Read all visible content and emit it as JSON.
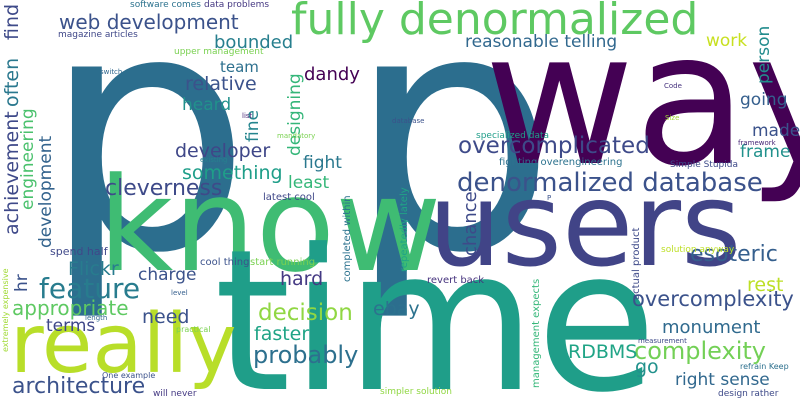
{
  "words": [
    {
      "text": "p",
      "color": "#2c6e8e"
    },
    {
      "text": "p",
      "color": "#2c6e8e"
    },
    {
      "text": "way",
      "color": "#440154"
    },
    {
      "text": "know",
      "color": "#3fbc73"
    },
    {
      "text": "users",
      "color": "#414487"
    },
    {
      "text": "time",
      "color": "#1f9e89"
    },
    {
      "text": "really",
      "color": "#b8de29"
    },
    {
      "text": "fully denormalized",
      "color": "#5ec962"
    },
    {
      "text": "denormalized database",
      "color": "#3b528b"
    },
    {
      "text": "web development",
      "color": "#3b528b"
    },
    {
      "text": "overcomplicated",
      "color": "#3e4a89"
    },
    {
      "text": "overcomplexity",
      "color": "#3b528b"
    },
    {
      "text": "complexity",
      "color": "#73d056"
    },
    {
      "text": "esoteric",
      "color": "#355f8d"
    },
    {
      "text": "cleverness",
      "color": "#3e4a89"
    },
    {
      "text": "feature",
      "color": "#287c8e"
    },
    {
      "text": "decision",
      "color": "#90d743"
    },
    {
      "text": "probably",
      "color": "#2d708e"
    },
    {
      "text": "architecture",
      "color": "#3b528b"
    },
    {
      "text": "appropriate",
      "color": "#5ec962"
    },
    {
      "text": "monument",
      "color": "#306a8e"
    },
    {
      "text": "right sense",
      "color": "#31688e"
    },
    {
      "text": "reasonable telling",
      "color": "#31688e"
    },
    {
      "text": "bounded",
      "color": "#277f8e"
    },
    {
      "text": "relative",
      "color": "#3b528b"
    },
    {
      "text": "developer",
      "color": "#3f4788"
    },
    {
      "text": "something",
      "color": "#1f9e89"
    },
    {
      "text": "dandy",
      "color": "#440154"
    },
    {
      "text": "heard",
      "color": "#21918c"
    },
    {
      "text": "fight",
      "color": "#2a788e"
    },
    {
      "text": "least",
      "color": "#35b779"
    },
    {
      "text": "chance",
      "color": "#3e4a89"
    },
    {
      "text": "Flickr",
      "color": "#287c8e"
    },
    {
      "text": "charge",
      "color": "#3b528b"
    },
    {
      "text": "hard",
      "color": "#443983"
    },
    {
      "text": "faster",
      "color": "#20a486"
    },
    {
      "text": "need",
      "color": "#3b528b"
    },
    {
      "text": "ebay",
      "color": "#2c728e"
    },
    {
      "text": "RDBMS",
      "color": "#20a486"
    },
    {
      "text": "rest",
      "color": "#bddf26"
    },
    {
      "text": "go",
      "color": "#21918c"
    },
    {
      "text": "terms",
      "color": "#3f4788"
    },
    {
      "text": "frame",
      "color": "#21918c"
    },
    {
      "text": "made",
      "color": "#3b528b"
    },
    {
      "text": "going",
      "color": "#355f8d"
    },
    {
      "text": "work",
      "color": "#c8e020"
    },
    {
      "text": "team",
      "color": "#2d708e"
    },
    {
      "text": "person",
      "color": "#228c8d"
    },
    {
      "text": "find",
      "color": "#3e4a89"
    },
    {
      "text": "often",
      "color": "#2a788e"
    },
    {
      "text": "achievement",
      "color": "#3e4989"
    },
    {
      "text": "engineering",
      "color": "#4ac16d"
    },
    {
      "text": "development",
      "color": "#33638d"
    },
    {
      "text": "hr",
      "color": "#3b528b"
    },
    {
      "text": "fine",
      "color": "#25858e"
    },
    {
      "text": "designing",
      "color": "#34b679"
    },
    {
      "text": "spend half",
      "color": "#3f4889"
    },
    {
      "text": "cool thing",
      "color": "#3b528b"
    },
    {
      "text": "latest cool",
      "color": "#3f4788"
    },
    {
      "text": "start running",
      "color": "#7ad151"
    },
    {
      "text": "completed within",
      "color": "#2c728e"
    },
    {
      "text": "repeatedly lately",
      "color": "#20a486"
    },
    {
      "text": "revert back",
      "color": "#46337e"
    },
    {
      "text": "management expects",
      "color": "#35b779"
    },
    {
      "text": "actual product",
      "color": "#3e4a89"
    },
    {
      "text": "specialized data",
      "color": "#1f9e89"
    },
    {
      "text": "fighting overengineering",
      "color": "#2c728e"
    },
    {
      "text": "Simple Stupida",
      "color": "#3e4a89"
    },
    {
      "text": "solution anyway",
      "color": "#bddf26"
    },
    {
      "text": "software comes",
      "color": "#2c728e"
    },
    {
      "text": "data problems",
      "color": "#453882"
    },
    {
      "text": "magazine articles",
      "color": "#3f4788"
    },
    {
      "text": "upper management",
      "color": "#7ad151"
    },
    {
      "text": "switch",
      "color": "#31688e"
    },
    {
      "text": "list",
      "color": "#482878"
    },
    {
      "text": "existing",
      "color": "#26818e"
    },
    {
      "text": "mandatory",
      "color": "#7ad151"
    },
    {
      "text": "database",
      "color": "#3b528b"
    },
    {
      "text": "Code",
      "color": "#46327e"
    },
    {
      "text": "Size",
      "color": "#a2da37"
    },
    {
      "text": "framework",
      "color": "#482878"
    },
    {
      "text": "measurement",
      "color": "#3e4a89"
    },
    {
      "text": "refrain Keep",
      "color": "#2d708e"
    },
    {
      "text": "design rather",
      "color": "#3e4a89"
    },
    {
      "text": "One example",
      "color": "#3b528b"
    },
    {
      "text": "will never",
      "color": "#443983"
    },
    {
      "text": "simpler solution",
      "color": "#90d743"
    },
    {
      "text": "extremely expensive",
      "color": "#a2da37"
    },
    {
      "text": "level",
      "color": "#355f8d"
    },
    {
      "text": "length",
      "color": "#31688e"
    },
    {
      "text": "practical",
      "color": "#7ad151"
    },
    {
      "text": "P",
      "color": "#3b528b"
    }
  ]
}
